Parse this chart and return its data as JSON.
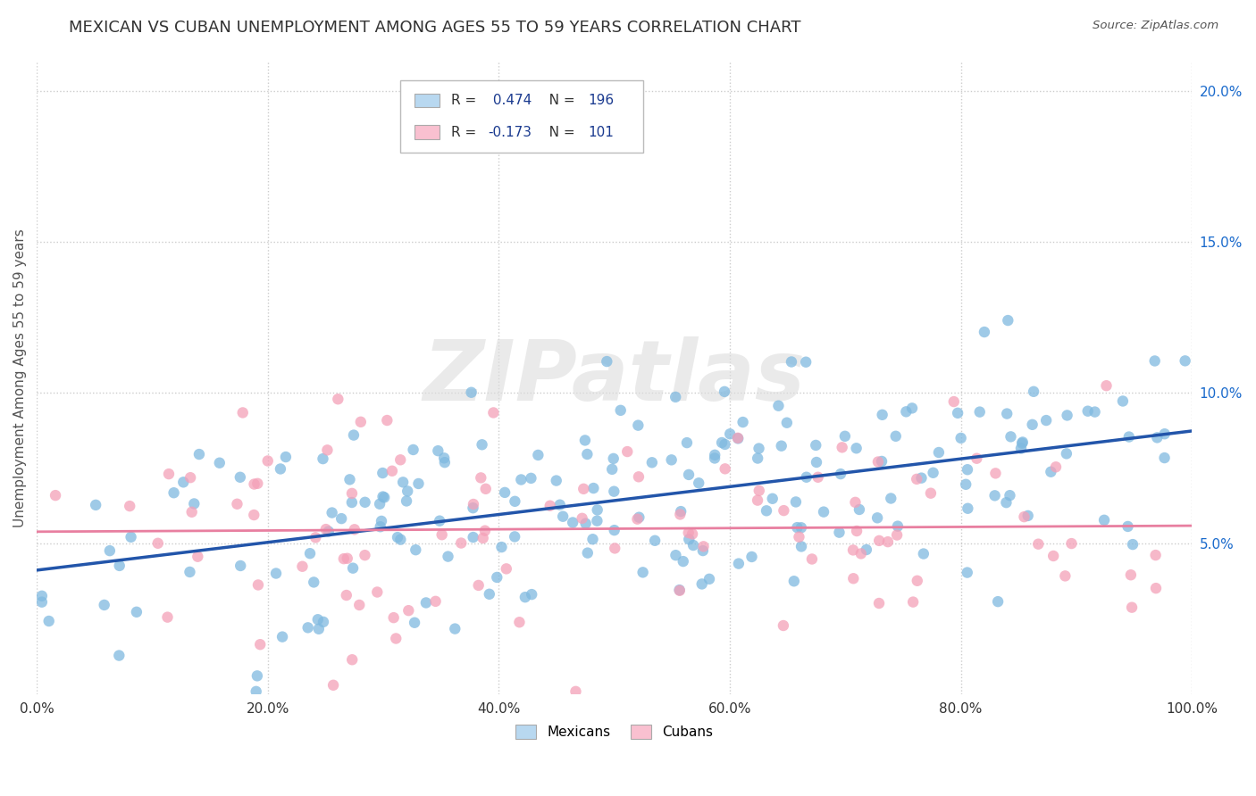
{
  "title": "MEXICAN VS CUBAN UNEMPLOYMENT AMONG AGES 55 TO 59 YEARS CORRELATION CHART",
  "source": "Source: ZipAtlas.com",
  "ylabel": "Unemployment Among Ages 55 to 59 years",
  "xlabel": "",
  "xlim": [
    0,
    1
  ],
  "ylim": [
    0,
    0.21
  ],
  "xticks": [
    0.0,
    0.2,
    0.4,
    0.6,
    0.8,
    1.0
  ],
  "xtick_labels": [
    "0.0%",
    "20.0%",
    "40.0%",
    "60.0%",
    "80.0%",
    "100.0%"
  ],
  "yticks": [
    0.05,
    0.1,
    0.15,
    0.2
  ],
  "ytick_labels": [
    "5.0%",
    "10.0%",
    "15.0%",
    "20.0%"
  ],
  "mexican_R": 0.474,
  "mexican_N": 196,
  "cuban_R": -0.173,
  "cuban_N": 101,
  "mexican_color": "#7fb9e0",
  "cuban_color": "#f4a0b8",
  "mexican_line_color": "#2255aa",
  "cuban_line_color": "#e87fa0",
  "legend_mexican_label": "Mexicans",
  "legend_cuban_label": "Cubans",
  "watermark": "ZIPatlas",
  "background_color": "#ffffff",
  "grid_color": "#cccccc",
  "title_fontsize": 13,
  "axis_fontsize": 11,
  "tick_fontsize": 11,
  "legend_box_color_mexican": "#b8d8f0",
  "legend_box_color_cuban": "#f9c0d0",
  "legend_text_color": "#333333",
  "legend_value_color": "#1a3a8f",
  "ytick_color": "#1a6acc",
  "xtick_color": "#333333"
}
